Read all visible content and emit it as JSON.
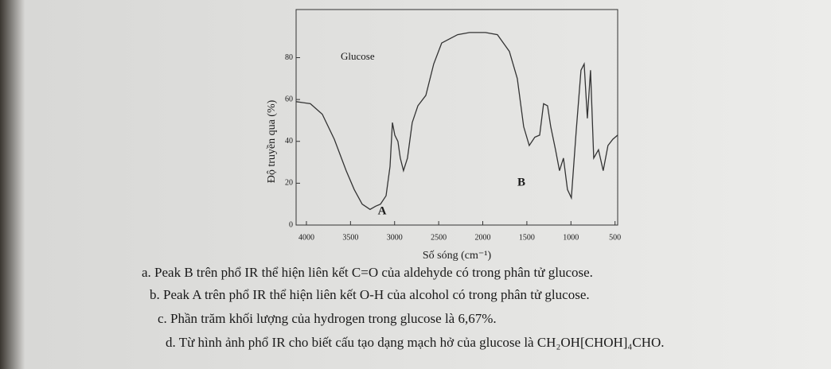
{
  "chart_data": {
    "type": "line",
    "title": "Glucose",
    "x_label": "Số sóng (cm⁻¹)",
    "y_label": "Độ truyền qua (%)",
    "x": [
      4117,
      3955,
      3820,
      3684,
      3549,
      3458,
      3368,
      3278,
      3215,
      3160,
      3097,
      3052,
      3025,
      2998,
      2962,
      2935,
      2899,
      2854,
      2800,
      2736,
      2646,
      2556,
      2466,
      2376,
      2285,
      2150,
      1969,
      1834,
      1699,
      1608,
      1536,
      1473,
      1410,
      1355,
      1310,
      1265,
      1229,
      1175,
      1130,
      1085,
      1040,
      995,
      940,
      886,
      850,
      814,
      778,
      742,
      688,
      634,
      580,
      525,
      470
    ],
    "values": [
      59,
      58,
      53,
      41,
      26,
      17,
      10,
      7.5,
      9,
      10,
      14,
      28,
      49,
      43,
      40,
      32,
      26,
      32,
      49,
      57,
      62,
      77,
      87,
      89,
      91,
      92,
      92,
      91,
      83,
      70,
      47,
      38,
      42,
      43,
      58,
      57,
      47,
      36,
      26,
      32,
      17,
      13,
      45,
      74,
      77,
      51,
      74,
      32,
      36,
      26,
      38,
      41,
      43
    ],
    "color": "#333333",
    "xlim": [
      4117,
      470
    ],
    "ylim": [
      0,
      103
    ],
    "xticks": [
      4000,
      3500,
      3000,
      2500,
      2000,
      1500,
      1000,
      500
    ],
    "yticks": [
      0,
      20,
      40,
      60,
      80
    ],
    "annotations": [
      "A",
      "B"
    ]
  },
  "statements": [
    "a. Peak B trên phổ IR thể hiện liên kết C=O của aldehyde có trong phân tử glucose.",
    "b. Peak A trên phổ IR thể hiện liên kết O-H của alcohol có trong phân tử glucose.",
    "c. Phần trăm khối lượng của hydrogen trong glucose là 6,67%.",
    "d. Từ hình ảnh phổ IR cho biết cấu tạo dạng mạch hở của glucose là CH₂OH[CHOH]₄CHO."
  ]
}
